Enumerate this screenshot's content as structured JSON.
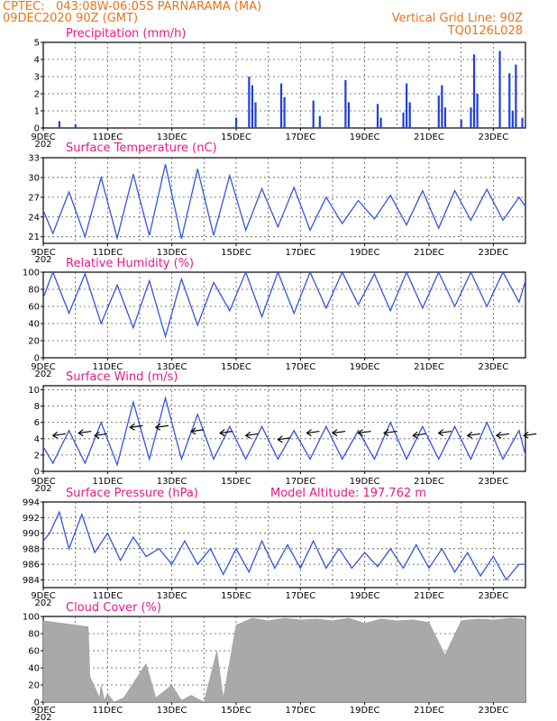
{
  "header": {
    "source": "CPTEC:",
    "location": "043:08W-06:05S  PARNARAMA (MA)",
    "run": "09DEC2020 90Z (GMT)",
    "grid": "Vertical Grid Line: 90Z",
    "code": "TQ0126L028"
  },
  "x_labels": [
    "9DEC",
    "11DEC",
    "13DEC",
    "15DEC",
    "17DEC",
    "19DEC",
    "21DEC",
    "23DEC"
  ],
  "x_stub": "202",
  "chart_data": [
    {
      "type": "bar",
      "title": "Precipitation (mm/h)",
      "ylim": [
        0,
        5
      ],
      "yticks": [
        0,
        1,
        2,
        3,
        4,
        5
      ],
      "x_days": [
        0.5,
        1.0,
        6.0,
        6.4,
        6.5,
        6.6,
        7.4,
        7.5,
        8.4,
        8.6,
        9.4,
        9.5,
        10.4,
        10.5,
        11.2,
        11.3,
        11.4,
        12.3,
        12.4,
        12.5,
        13.0,
        13.3,
        13.4,
        13.5,
        14.2,
        14.5,
        14.6,
        14.7,
        14.9
      ],
      "values": [
        0.4,
        0.2,
        0.6,
        3.0,
        2.5,
        1.5,
        2.6,
        1.8,
        1.6,
        0.7,
        2.8,
        1.5,
        1.4,
        0.6,
        0.9,
        2.6,
        1.5,
        1.9,
        2.5,
        1.2,
        0.5,
        1.2,
        4.3,
        2.0,
        4.5,
        3.2,
        1.0,
        3.7,
        0.6
      ]
    },
    {
      "type": "line",
      "title": "Surface Temperature (nC)",
      "ylim": [
        20,
        33
      ],
      "yticks": [
        21,
        24,
        27,
        30,
        33
      ],
      "x_days": [
        0,
        0.3,
        0.8,
        1.3,
        1.8,
        2.3,
        2.8,
        3.3,
        3.8,
        4.3,
        4.8,
        5.3,
        5.8,
        6.3,
        6.8,
        7.3,
        7.8,
        8.3,
        8.8,
        9.3,
        9.8,
        10.3,
        10.8,
        11.3,
        11.8,
        12.3,
        12.8,
        13.3,
        13.8,
        14.3,
        14.8,
        15.0
      ],
      "values": [
        25,
        21.5,
        27.8,
        21,
        30,
        20.8,
        30.5,
        21.2,
        32,
        20.7,
        31.3,
        21.2,
        30.3,
        22,
        28.3,
        22.5,
        28.5,
        22,
        27,
        23,
        26.5,
        23.7,
        27.3,
        22.8,
        28,
        22.3,
        28,
        23.5,
        28.2,
        23.5,
        27,
        25.6
      ]
    },
    {
      "type": "line",
      "title": "Relative Humidity (%)",
      "ylim": [
        0,
        100
      ],
      "yticks": [
        0,
        20,
        40,
        60,
        80,
        100
      ],
      "x_days": [
        0,
        0.3,
        0.8,
        1.3,
        1.8,
        2.3,
        2.8,
        3.3,
        3.8,
        4.3,
        4.8,
        5.3,
        5.8,
        6.3,
        6.8,
        7.3,
        7.8,
        8.3,
        8.8,
        9.3,
        9.8,
        10.3,
        10.8,
        11.3,
        11.8,
        12.3,
        12.8,
        13.3,
        13.8,
        14.3,
        14.8,
        15.0
      ],
      "values": [
        70,
        100,
        52,
        98,
        40,
        85,
        35,
        90,
        25,
        92,
        38,
        88,
        55,
        100,
        48,
        100,
        52,
        100,
        58,
        100,
        62,
        98,
        55,
        100,
        58,
        100,
        60,
        100,
        60,
        100,
        65,
        90
      ]
    },
    {
      "type": "line",
      "title": "Surface Wind (m/s)",
      "ylim": [
        0,
        10.5
      ],
      "yticks": [
        0,
        2,
        4,
        6,
        8,
        10
      ],
      "x_days": [
        0,
        0.3,
        0.8,
        1.3,
        1.8,
        2.3,
        2.8,
        3.3,
        3.8,
        4.3,
        4.8,
        5.3,
        5.8,
        6.3,
        6.8,
        7.3,
        7.8,
        8.3,
        8.8,
        9.3,
        9.8,
        10.3,
        10.8,
        11.3,
        11.8,
        12.3,
        12.8,
        13.3,
        13.8,
        14.3,
        14.8,
        15.0
      ],
      "values": [
        3,
        1,
        5,
        1,
        6,
        0.8,
        8.5,
        1.5,
        9,
        1.5,
        7,
        1.5,
        5.5,
        1.5,
        5.5,
        1.5,
        5,
        1.5,
        5.5,
        1.5,
        5,
        1.5,
        6,
        1.5,
        5.5,
        1.5,
        5.5,
        1.5,
        6,
        1.5,
        5,
        2
      ],
      "vectors_x_days": [
        0.3,
        1.1,
        1.6,
        2.7,
        3.5,
        4.6,
        5.5,
        6.3,
        7.3,
        8.2,
        9.0,
        9.8,
        10.6,
        11.5,
        12.3,
        13.2,
        14.1,
        14.95
      ],
      "vectors_y": [
        4.5,
        4.8,
        4.5,
        5.5,
        5.5,
        5,
        4.8,
        4.5,
        4,
        4.8,
        4.8,
        4.8,
        4.8,
        4.5,
        4.8,
        4.5,
        4.5,
        4.5
      ]
    },
    {
      "type": "line",
      "title": "Surface Pressure (hPa)",
      "annotation": "Model Altitude: 197.762 m",
      "ylim": [
        983,
        994
      ],
      "yticks": [
        984,
        986,
        988,
        990,
        992,
        994
      ],
      "x_days": [
        0,
        0.2,
        0.5,
        0.8,
        1.2,
        1.6,
        2.0,
        2.4,
        2.8,
        3.2,
        3.6,
        4.0,
        4.4,
        4.8,
        5.2,
        5.6,
        6.0,
        6.4,
        6.8,
        7.2,
        7.6,
        8.0,
        8.4,
        8.8,
        9.2,
        9.6,
        10.0,
        10.4,
        10.8,
        11.2,
        11.6,
        12.0,
        12.4,
        12.8,
        13.2,
        13.6,
        14.0,
        14.4,
        14.8,
        15.0
      ],
      "values": [
        989,
        990,
        992.7,
        988,
        992.4,
        987.5,
        990,
        986.5,
        989.5,
        987,
        988,
        986,
        989,
        986,
        988,
        984.7,
        988,
        985,
        989,
        985.5,
        988.5,
        985.5,
        989,
        985.5,
        988,
        985.5,
        987.5,
        985.7,
        988,
        985.5,
        988.5,
        985.5,
        988,
        985,
        987.5,
        984.5,
        987,
        984,
        986,
        986
      ]
    },
    {
      "type": "area",
      "title": "Cloud Cover (%)",
      "ylim": [
        0,
        100
      ],
      "yticks": [
        0,
        20,
        40,
        60,
        80,
        100
      ],
      "x_days": [
        0,
        1.4,
        1.45,
        1.75,
        1.8,
        1.9,
        2.0,
        2.2,
        2.5,
        3.2,
        3.5,
        4.0,
        4.3,
        4.6,
        5.0,
        5.4,
        5.6,
        6.0,
        6.5,
        7.0,
        7.5,
        8.0,
        8.5,
        9.0,
        9.5,
        10.0,
        10.5,
        11.0,
        11.5,
        12.0,
        12.5,
        13.0,
        13.5,
        14.0,
        14.5,
        15.0
      ],
      "values": [
        95,
        88,
        30,
        5,
        20,
        2,
        10,
        0,
        5,
        45,
        5,
        20,
        2,
        8,
        0,
        60,
        5,
        90,
        98,
        95,
        98,
        96,
        97,
        95,
        98,
        92,
        97,
        95,
        96,
        93,
        55,
        95,
        97,
        96,
        98,
        97
      ]
    }
  ]
}
